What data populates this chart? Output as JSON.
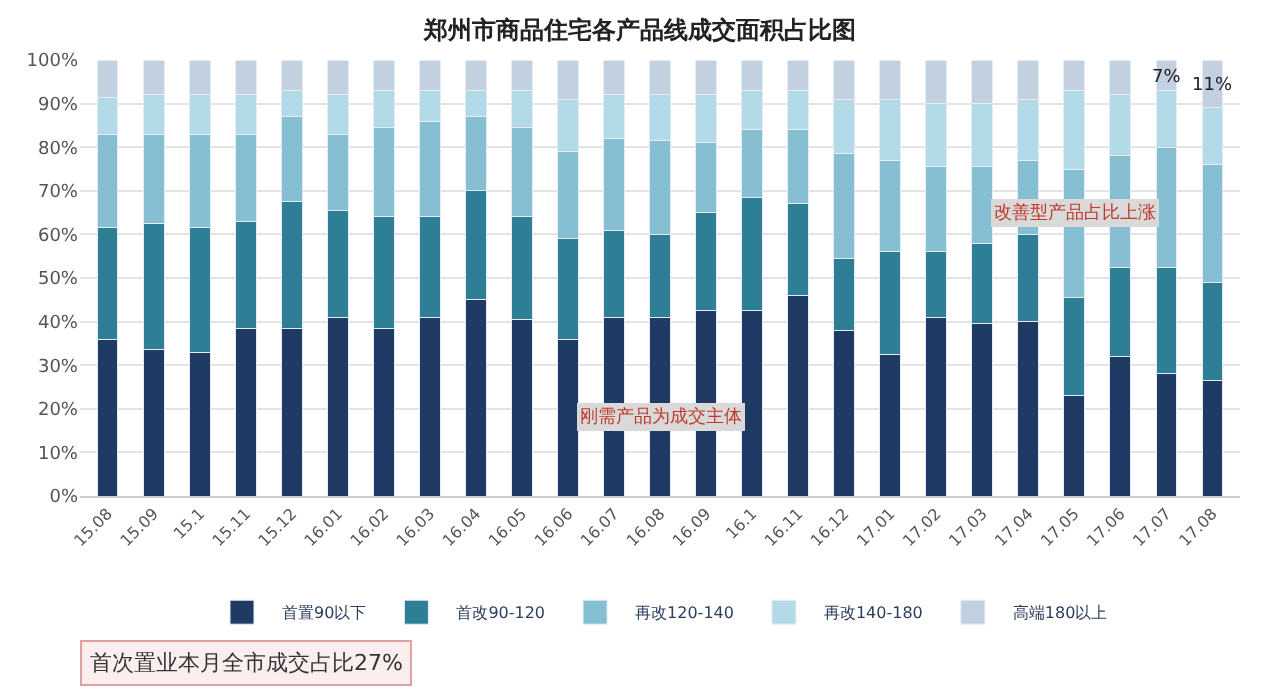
{
  "chart_data": {
    "type": "bar",
    "stacked": true,
    "title": "郑州市商品住宅各产品线成交面积占比图",
    "categories": [
      "15.08",
      "15.09",
      "15.1",
      "15.11",
      "15.12",
      "16.01",
      "16.02",
      "16.03",
      "16.04",
      "16.05",
      "16.06",
      "16.07",
      "16.08",
      "16.09",
      "16.1",
      "16.11",
      "16.12",
      "17.01",
      "17.02",
      "17.03",
      "17.04",
      "17.05",
      "17.06",
      "17.07",
      "17.08"
    ],
    "series": [
      {
        "name": "首置90以下",
        "color": "#1f3a63",
        "values": [
          36,
          33.5,
          33,
          38.5,
          38.5,
          41,
          38.5,
          41,
          45,
          40.5,
          36,
          41,
          41,
          42.5,
          42.5,
          46,
          38,
          32.5,
          41,
          39.5,
          40,
          23,
          32,
          28,
          26.5
        ]
      },
      {
        "name": "首改90-120",
        "color": "#2e7f96",
        "values": [
          25.5,
          29,
          28.5,
          24.5,
          29,
          24.5,
          25.5,
          23,
          25,
          23.5,
          23,
          20,
          19,
          22.5,
          26,
          21,
          16.5,
          23.5,
          15,
          18.5,
          20,
          22.5,
          20.5,
          24.5,
          22.5
        ]
      },
      {
        "name": "再改120-140",
        "color": "#86bfd2",
        "values": [
          21.5,
          20.5,
          21.5,
          20,
          19.5,
          17.5,
          20.5,
          22,
          17,
          20.5,
          20,
          21,
          21.5,
          16,
          15.5,
          17,
          24,
          21,
          19.5,
          17.5,
          17,
          29.5,
          25.5,
          27.5,
          27
        ]
      },
      {
        "name": "再改140-180",
        "color": "#b3dbe7",
        "values": [
          8.5,
          9,
          9,
          9,
          6,
          9,
          8.5,
          7,
          6,
          8.5,
          12,
          10,
          10.5,
          11,
          9,
          9,
          12.5,
          14,
          14.5,
          14.5,
          14,
          18,
          14,
          13,
          13
        ]
      },
      {
        "name": "高端180以上",
        "color": "#c3d0df",
        "values": [
          8.5,
          8,
          8,
          8,
          7,
          8,
          7,
          7,
          7,
          7,
          9,
          8,
          8,
          8,
          7,
          7,
          9,
          9,
          10,
          10,
          9,
          7,
          8,
          7,
          11
        ]
      }
    ],
    "ylim": [
      0,
      100
    ],
    "yticks": [
      {
        "value": 0,
        "label": "0%"
      },
      {
        "value": 10,
        "label": "10%"
      },
      {
        "value": 20,
        "label": "20%"
      },
      {
        "value": 30,
        "label": "30%"
      },
      {
        "value": 40,
        "label": "40%"
      },
      {
        "value": 50,
        "label": "50%"
      },
      {
        "value": 60,
        "label": "60%"
      },
      {
        "value": 70,
        "label": "70%"
      },
      {
        "value": 80,
        "label": "80%"
      },
      {
        "value": 90,
        "label": "90%"
      },
      {
        "value": 100,
        "label": "100%"
      }
    ],
    "grid": "y",
    "legend": "bottom",
    "annotations": [
      {
        "text": "7%",
        "x": "17.07",
        "y": 96
      },
      {
        "text": "11%",
        "x": "17.08",
        "y": 94
      },
      {
        "text": "刚需产品为成交主体",
        "x": "16.08",
        "y": 18
      },
      {
        "text": "改善型产品占比上涨",
        "x": "17.05",
        "y": 65
      },
      "首次置业本月全市成交占比27%"
    ]
  }
}
